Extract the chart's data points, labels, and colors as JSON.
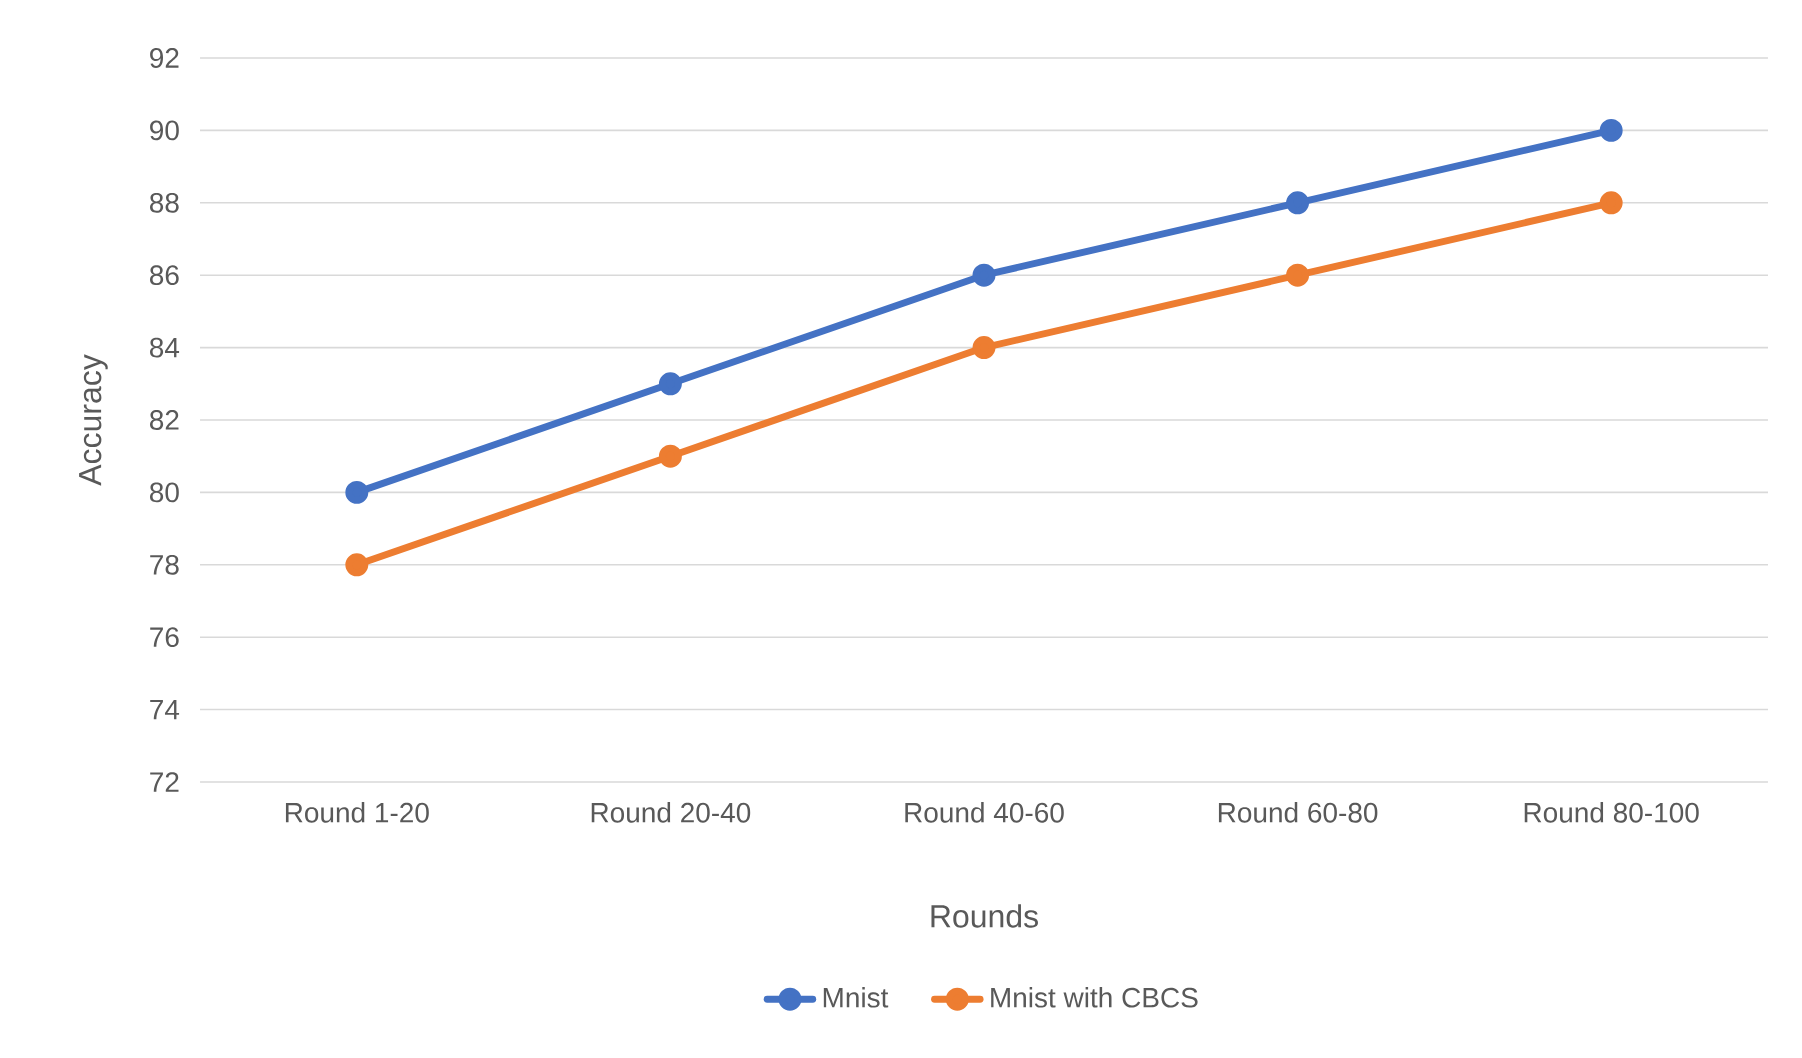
{
  "chart_data": {
    "type": "line",
    "xlabel": "Rounds",
    "ylabel": "Accuracy",
    "categories": [
      "Round 1-20",
      "Round 20-40",
      "Round 40-60",
      "Round 60-80",
      "Round 80-100"
    ],
    "series": [
      {
        "name": "Mnist",
        "color": "#4472c4",
        "values": [
          80,
          83,
          86,
          88,
          90
        ]
      },
      {
        "name": "Mnist with CBCS",
        "color": "#ed7d31",
        "values": [
          78,
          81,
          84,
          86,
          88
        ]
      }
    ],
    "ylim": [
      72,
      92
    ],
    "yticks": [
      72,
      74,
      76,
      78,
      80,
      82,
      84,
      86,
      88,
      90,
      92
    ],
    "grid": "y",
    "legend": "bottom",
    "marker": "circle"
  }
}
